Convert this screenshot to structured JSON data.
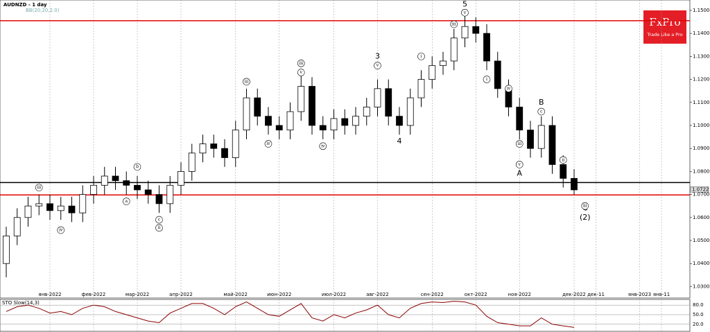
{
  "chart_data": {
    "type": "candlestick",
    "title": "AUDNZD - 1 day",
    "indicator_label": "BB(20,20,2.0)",
    "categories": [
      null,
      null,
      null,
      null,
      "янв-2022",
      null,
      null,
      null,
      "фев-2022",
      null,
      null,
      null,
      "мар-2022",
      null,
      null,
      null,
      "апр-2022",
      null,
      null,
      null,
      null,
      "май-2022",
      null,
      null,
      null,
      "июн-2022",
      null,
      null,
      null,
      null,
      "июл-2022",
      null,
      null,
      null,
      "авг-2022",
      null,
      null,
      null,
      null,
      "сен-2022",
      null,
      null,
      null,
      "окт-2022",
      null,
      null,
      null,
      "ноя-2022",
      null,
      null,
      null,
      null,
      "дек-2022",
      null,
      "дек-11",
      null,
      null,
      null,
      "янв-2023",
      null,
      "янв-11",
      null,
      null
    ],
    "open": [
      1.04,
      1.052,
      1.06,
      1.065,
      1.066,
      1.063,
      1.065,
      1.062,
      1.07,
      1.074,
      1.078,
      1.076,
      1.074,
      1.072,
      1.07,
      1.066,
      1.074,
      1.08,
      1.088,
      1.092,
      1.09,
      1.086,
      1.098,
      1.112,
      1.104,
      1.1,
      1.098,
      1.106,
      1.117,
      1.1,
      1.098,
      1.103,
      1.1,
      1.104,
      1.108,
      1.116,
      1.104,
      1.1,
      1.112,
      1.12,
      1.126,
      1.128,
      1.138,
      1.143,
      1.14,
      1.128,
      1.116,
      1.108,
      1.098,
      1.09,
      1.1,
      1.083,
      1.077,
      null,
      null,
      null,
      null,
      null,
      null,
      null,
      null,
      null,
      null
    ],
    "high": [
      1.056,
      1.064,
      1.069,
      1.07,
      1.07,
      1.069,
      1.069,
      1.074,
      1.078,
      1.082,
      1.082,
      1.08,
      1.078,
      1.076,
      1.074,
      1.078,
      1.084,
      1.092,
      1.096,
      1.096,
      1.094,
      1.102,
      1.116,
      1.116,
      1.108,
      1.104,
      1.11,
      1.122,
      1.121,
      1.104,
      1.107,
      1.107,
      1.108,
      1.112,
      1.12,
      1.12,
      1.108,
      1.116,
      1.124,
      1.13,
      1.132,
      1.142,
      1.148,
      1.147,
      1.144,
      1.132,
      1.12,
      1.112,
      1.102,
      1.104,
      1.104,
      1.087,
      1.081,
      null,
      null,
      null,
      null,
      null,
      null,
      null,
      null,
      null,
      null
    ],
    "low": [
      1.034,
      1.048,
      1.056,
      1.061,
      1.059,
      1.059,
      1.058,
      1.058,
      1.066,
      1.07,
      1.072,
      1.07,
      1.068,
      1.066,
      1.062,
      1.062,
      1.07,
      1.076,
      1.084,
      1.086,
      1.082,
      1.082,
      1.094,
      1.1,
      1.096,
      1.094,
      1.094,
      1.102,
      1.096,
      1.094,
      1.094,
      1.096,
      1.096,
      1.1,
      1.104,
      1.1,
      1.096,
      1.096,
      1.108,
      1.116,
      1.122,
      1.124,
      1.134,
      1.136,
      1.124,
      1.112,
      1.104,
      1.094,
      1.086,
      1.086,
      1.079,
      1.073,
      1.07,
      null,
      null,
      null,
      null,
      null,
      null,
      null,
      null,
      null,
      null
    ],
    "close": [
      1.052,
      1.06,
      1.065,
      1.066,
      1.063,
      1.065,
      1.062,
      1.07,
      1.074,
      1.078,
      1.076,
      1.074,
      1.072,
      1.07,
      1.066,
      1.074,
      1.08,
      1.088,
      1.092,
      1.09,
      1.086,
      1.098,
      1.112,
      1.104,
      1.1,
      1.098,
      1.106,
      1.117,
      1.1,
      1.098,
      1.103,
      1.1,
      1.104,
      1.108,
      1.116,
      1.104,
      1.1,
      1.112,
      1.12,
      1.126,
      1.128,
      1.138,
      1.143,
      1.14,
      1.128,
      1.116,
      1.108,
      1.098,
      1.09,
      1.1,
      1.083,
      1.077,
      1.072,
      null,
      null,
      null,
      null,
      null,
      null,
      null,
      null,
      null,
      null
    ],
    "up_color": "#ffffff",
    "down_color": "#000000",
    "ylim": [
      1.0253,
      1.153
    ],
    "yticks": [
      {
        "value": 1.15,
        "label": "1.1500"
      },
      {
        "value": 1.14,
        "label": "1.1400"
      },
      {
        "value": 1.13,
        "label": "1.1300"
      },
      {
        "value": 1.12,
        "label": "1.1200"
      },
      {
        "value": 1.11,
        "label": "1.1100"
      },
      {
        "value": 1.1,
        "label": "1.1000"
      },
      {
        "value": 1.09,
        "label": "1.0900"
      },
      {
        "value": 1.08,
        "label": "1.0800"
      },
      {
        "value": 1.07,
        "label": "1.0700"
      },
      {
        "value": 1.06,
        "label": "1.0600"
      },
      {
        "value": 1.05,
        "label": "1.0500"
      },
      {
        "value": 1.04,
        "label": "1.0400"
      },
      {
        "value": 1.03,
        "label": "1.0300"
      }
    ],
    "grid": true,
    "last_price": {
      "value": 1.0722,
      "label": "1.0722"
    },
    "levels": [
      {
        "value": 1.1455,
        "color": "#e00000"
      },
      {
        "value": 1.0752,
        "color": "#000000"
      },
      {
        "value": 1.0698,
        "color": "#e00000"
      }
    ],
    "annotations": [
      {
        "text": "5",
        "index": 42,
        "price": 1.1525,
        "circled": false
      },
      {
        "text": "3",
        "index": 34,
        "price": 1.13,
        "circled": false
      },
      {
        "text": "4",
        "index": 36,
        "price": 1.093,
        "circled": false
      },
      {
        "text": "A",
        "index": 47,
        "price": 1.079,
        "circled": false
      },
      {
        "text": "B",
        "index": 49,
        "price": 1.11,
        "circled": false
      },
      {
        "text": "C",
        "index": 53,
        "price": 1.064,
        "circled": false
      },
      {
        "text": "(2)",
        "index": 53,
        "price": 1.06,
        "circled": false
      },
      {
        "text": "iii",
        "index": 3,
        "price": 1.073,
        "circled": true
      },
      {
        "text": "iv",
        "index": 5,
        "price": 1.0545,
        "circled": true
      },
      {
        "text": "b",
        "index": 12,
        "price": 1.082,
        "circled": true
      },
      {
        "text": "a",
        "index": 11,
        "price": 1.067,
        "circled": true
      },
      {
        "text": "c",
        "index": 14,
        "price": 1.059,
        "circled": true
      },
      {
        "text": "ii",
        "index": 14,
        "price": 1.0555,
        "circled": true
      },
      {
        "text": "iii",
        "index": 22,
        "price": 1.119,
        "circled": true
      },
      {
        "text": "iv",
        "index": 24,
        "price": 1.092,
        "circled": true
      },
      {
        "text": "iii",
        "index": 27,
        "price": 1.127,
        "circled": true
      },
      {
        "text": "v",
        "index": 27,
        "price": 1.123,
        "circled": true
      },
      {
        "text": "iv",
        "index": 29,
        "price": 1.091,
        "circled": true
      },
      {
        "text": "v",
        "index": 34,
        "price": 1.126,
        "circled": true
      },
      {
        "text": "i",
        "index": 38,
        "price": 1.13,
        "circled": true
      },
      {
        "text": "iii",
        "index": 41,
        "price": 1.144,
        "circled": true
      },
      {
        "text": "v",
        "index": 42,
        "price": 1.149,
        "circled": true
      },
      {
        "text": "i",
        "index": 44,
        "price": 1.12,
        "circled": true
      },
      {
        "text": "iv",
        "index": 46,
        "price": 1.116,
        "circled": true
      },
      {
        "text": "iii",
        "index": 47,
        "price": 1.092,
        "circled": true
      },
      {
        "text": "v",
        "index": 47,
        "price": 1.083,
        "circled": true
      },
      {
        "text": "c",
        "index": 49,
        "price": 1.106,
        "circled": true
      },
      {
        "text": "ii",
        "index": 51,
        "price": 1.085,
        "circled": true
      },
      {
        "text": "iii",
        "index": 53,
        "price": 1.065,
        "circled": true
      }
    ],
    "oscillator": {
      "title": "STO Slow(14,3)",
      "color": "#8b0000",
      "values": [
        60,
        75,
        80,
        70,
        55,
        60,
        50,
        70,
        80,
        75,
        60,
        50,
        40,
        30,
        25,
        55,
        70,
        85,
        85,
        70,
        50,
        75,
        90,
        70,
        50,
        45,
        65,
        85,
        40,
        30,
        50,
        40,
        55,
        65,
        80,
        50,
        40,
        70,
        85,
        90,
        88,
        92,
        90,
        80,
        45,
        25,
        20,
        15,
        15,
        40,
        20,
        15,
        10,
        null,
        null,
        null,
        null,
        null,
        null,
        null,
        null,
        null,
        null
      ],
      "ylim": [
        0,
        100
      ],
      "yticks": [
        {
          "value": 80,
          "label": "80.0"
        },
        {
          "value": 50,
          "label": "50.0"
        },
        {
          "value": 20,
          "label": "20.0"
        }
      ]
    },
    "logo": {
      "name": "FxPro",
      "tagline": "Trade Like a Pro"
    }
  }
}
